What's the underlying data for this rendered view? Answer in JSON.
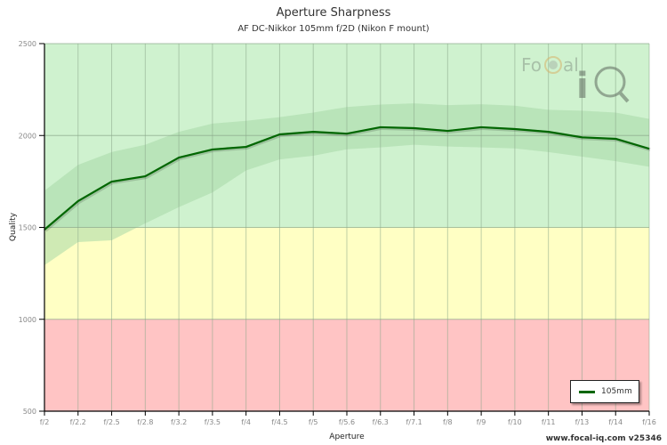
{
  "header": {
    "title": "Aperture Sharpness",
    "subtitle": "AF DC-Nikkor 105mm f/2D (Nikon F mount)"
  },
  "watermark": {
    "text_left": "FoCal",
    "text_right": "iQ",
    "icon": "magnifier-aperture-icon"
  },
  "legend": {
    "items": [
      {
        "label": "105mm",
        "color": "#006600"
      }
    ]
  },
  "footer": {
    "text": "www.focal-iq.com  v25346"
  },
  "colors": {
    "zone_good": "#cff2cf",
    "zone_ok": "#ffffc4",
    "zone_poor": "#ffc4c4",
    "band": "#a8d9a8",
    "line": "#006600",
    "grid": "#8aa88a"
  },
  "chart_data": {
    "type": "line",
    "title": "Aperture Sharpness",
    "subtitle": "AF DC-Nikkor 105mm f/2D (Nikon F mount)",
    "xlabel": "Aperture",
    "ylabel": "Quality",
    "ylim": [
      500,
      2500
    ],
    "yticks": [
      500,
      1000,
      1500,
      2000,
      2500
    ],
    "grid": true,
    "legend_position": "bottom-right",
    "categories": [
      "f/2",
      "f/2.2",
      "f/2.5",
      "f/2.8",
      "f/3.2",
      "f/3.5",
      "f/4",
      "f/4.5",
      "f/5",
      "f/5.6",
      "f/6.3",
      "f/7.1",
      "f/8",
      "f/9",
      "f/10",
      "f/11",
      "f/13",
      "f/14",
      "f/16"
    ],
    "zones": [
      {
        "name": "good",
        "from": 1500,
        "to": 2500,
        "color": "#cff2cf"
      },
      {
        "name": "ok",
        "from": 1000,
        "to": 1500,
        "color": "#ffffc4"
      },
      {
        "name": "poor",
        "from": 500,
        "to": 1000,
        "color": "#ffc4c4"
      }
    ],
    "series": [
      {
        "name": "105mm",
        "color": "#006600",
        "values": [
          1488,
          1643,
          1749,
          1778,
          1880,
          1924,
          1938,
          2006,
          2020,
          2010,
          2045,
          2040,
          2025,
          2045,
          2035,
          2020,
          1990,
          1982,
          1928
        ]
      }
    ],
    "band": {
      "upper": [
        1700,
        1840,
        1910,
        1950,
        2020,
        2065,
        2080,
        2100,
        2125,
        2155,
        2168,
        2175,
        2165,
        2170,
        2162,
        2140,
        2135,
        2125,
        2090
      ],
      "lower": [
        1294,
        1420,
        1430,
        1522,
        1610,
        1690,
        1810,
        1870,
        1890,
        1925,
        1935,
        1950,
        1940,
        1935,
        1930,
        1910,
        1885,
        1860,
        1830
      ]
    }
  }
}
